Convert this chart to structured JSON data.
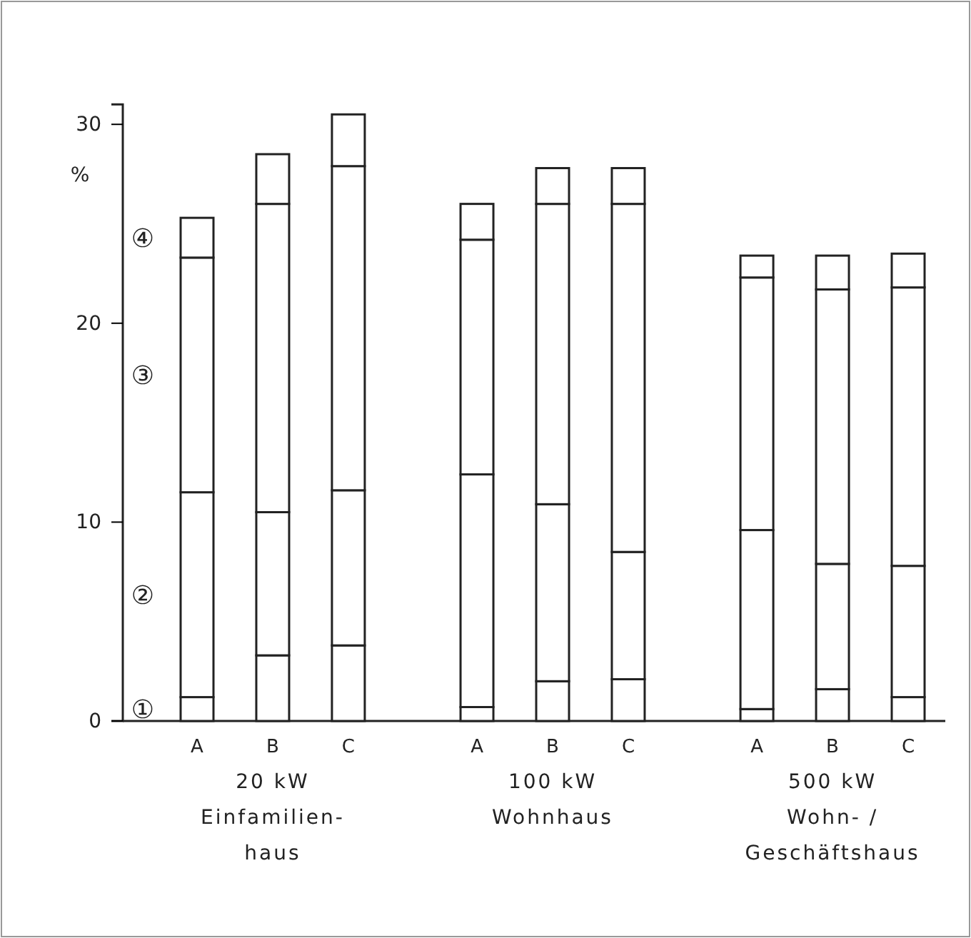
{
  "chart_data": {
    "type": "bar",
    "stacked": true,
    "ylabel": "%",
    "categories": [
      "A",
      "B",
      "C",
      "A",
      "B",
      "C",
      "A",
      "B",
      "C"
    ],
    "series": [
      {
        "name": "①",
        "color": "#ffffff",
        "values": [
          1.2,
          3.3,
          3.8,
          0.7,
          2.0,
          2.1,
          0.6,
          1.6,
          1.2
        ]
      },
      {
        "name": "②",
        "color": "#ffffff",
        "values": [
          10.3,
          7.2,
          7.8,
          11.7,
          8.9,
          6.4,
          9.0,
          6.3,
          6.6
        ]
      },
      {
        "name": "③",
        "color": "#ffffff",
        "values": [
          11.8,
          15.5,
          16.3,
          11.8,
          15.1,
          17.5,
          12.7,
          13.8,
          14.0
        ]
      },
      {
        "name": "④",
        "color": "#ffffff",
        "values": [
          2.0,
          2.5,
          2.6,
          1.8,
          1.8,
          1.8,
          1.1,
          1.7,
          1.7
        ]
      }
    ],
    "ylim": [
      0,
      31
    ],
    "yticks": [
      0,
      10,
      20,
      30
    ],
    "grid": false,
    "annotations": [
      "20 kW\nEinfamilien-\nhaus",
      "100 kW\nWohnhaus",
      "500 kW\nWohn- /\nGeschäftshaus"
    ]
  }
}
